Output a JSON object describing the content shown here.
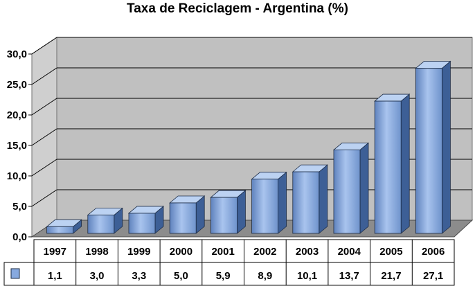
{
  "chart_data": {
    "type": "bar",
    "title": "Taxa de Reciclagem - Argentina (%)",
    "xlabel": "",
    "ylabel": "",
    "categories": [
      "1997",
      "1998",
      "1999",
      "2000",
      "2001",
      "2002",
      "2003",
      "2004",
      "2005",
      "2006"
    ],
    "series": [
      {
        "values": [
          1.1,
          3.0,
          3.3,
          5.0,
          5.9,
          8.9,
          10.1,
          13.7,
          21.7,
          27.1
        ]
      }
    ],
    "value_labels": [
      "1,1",
      "3,0",
      "3,3",
      "5,0",
      "5,9",
      "8,9",
      "10,1",
      "13,7",
      "21,7",
      "27,1"
    ],
    "y_ticks": [
      "0,0",
      "5,0",
      "10,0",
      "15,0",
      "20,0",
      "25,0",
      "30,0"
    ],
    "ylim": [
      0,
      30
    ],
    "grid": true,
    "legend": "data-table-left",
    "colors": {
      "bar_front": "#87a9df",
      "bar_top": "#bcd2f2",
      "bar_side": "#3d5f96",
      "wall": "#c0c0c0",
      "floor": "#8c8c8c"
    }
  }
}
